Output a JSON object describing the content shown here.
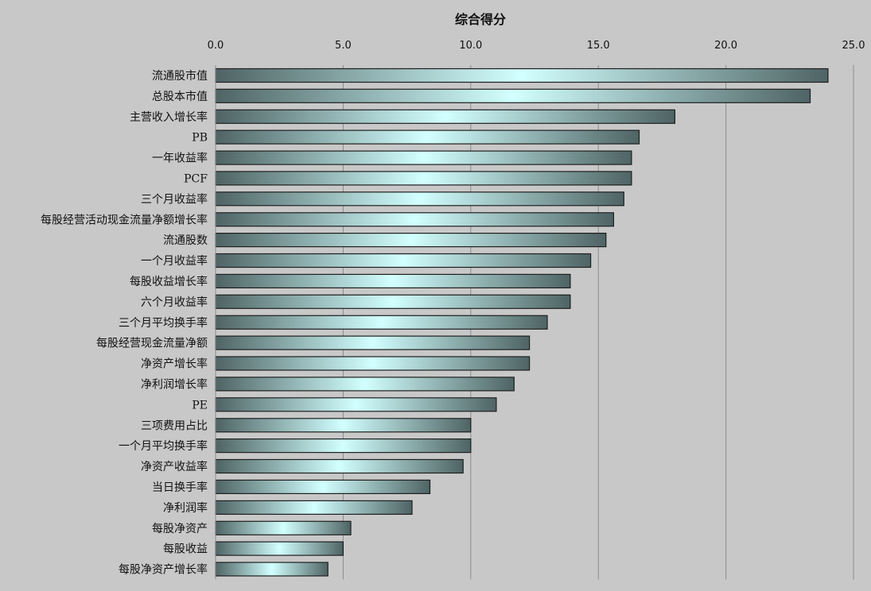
{
  "chart_data": {
    "type": "bar",
    "orientation": "horizontal",
    "title": "综合得分",
    "xlabel": "",
    "ylabel": "",
    "xlim": [
      0,
      25
    ],
    "x_ticks": [
      "0.0",
      "5.0",
      "10.0",
      "15.0",
      "20.0",
      "25.0"
    ],
    "x_axis_position": "top",
    "grid": true,
    "legend": "none",
    "categories": [
      "流通股市值",
      "总股本市值",
      "主营收入增长率",
      "PB",
      "一年收益率",
      "PCF",
      "三个月收益率",
      "每股经营活动现金流量净额增长率",
      "流通股数",
      "一个月收益率",
      "每股收益增长率",
      "六个月收益率",
      "三个月平均换手率",
      "每股经营现金流量净额",
      "净资产增长率",
      "净利润增长率",
      "PE",
      "三项费用占比",
      "一个月平均换手率",
      "净资产收益率",
      "当日换手率",
      "净利润率",
      "每股净资产",
      "每股收益",
      "每股净资产增长率"
    ],
    "values": [
      24.0,
      23.3,
      18.0,
      16.6,
      16.3,
      16.3,
      16.0,
      15.6,
      15.3,
      14.7,
      13.9,
      13.9,
      13.0,
      12.3,
      12.3,
      11.7,
      11.0,
      10.0,
      10.0,
      9.7,
      8.4,
      7.7,
      5.3,
      5.0,
      4.4
    ],
    "colors": {
      "background": "#c8c8c8",
      "bar_edge": "#4f6464",
      "bar_outline": "#1e1e1e",
      "bar_center": "#d2ffff",
      "gridline": "#8c8c8c",
      "text": "#111111"
    }
  }
}
